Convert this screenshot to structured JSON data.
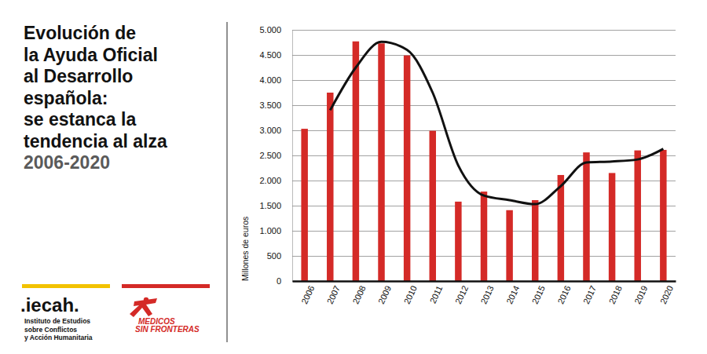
{
  "chart_data": {
    "type": "bar",
    "title": "Evolución de\nla Ayuda Oficial\nal Desarrollo\nespañola:\nse estanca la\ntendencia al alza",
    "subtitle": "2006-2020",
    "y_label": "Millones de euros",
    "categories": [
      "2006",
      "2007",
      "2008",
      "2009",
      "2010",
      "2011",
      "2012",
      "2013",
      "2014",
      "2015",
      "2016",
      "2017",
      "2018",
      "2019",
      "2020"
    ],
    "series": [
      {
        "type": "bar",
        "color": "#d42a27",
        "values": [
          3030,
          3750,
          4770,
          4730,
          4490,
          2990,
          1580,
          1780,
          1410,
          1610,
          2110,
          2560,
          2150,
          2600,
          2610
        ]
      },
      {
        "type": "line",
        "color": "#111111",
        "values": [
          null,
          3400,
          4250,
          4760,
          4600,
          3750,
          2300,
          1700,
          1610,
          1530,
          1890,
          2360,
          2380,
          2420,
          2630
        ]
      }
    ],
    "ylim": [
      0,
      5000
    ],
    "yticks": [
      0,
      500,
      {
        "value": 1000,
        "label": "1.000"
      },
      {
        "value": 1500,
        "label": "1.500"
      },
      {
        "value": 2000,
        "label": "2.000"
      },
      {
        "value": 2500,
        "label": "2.500"
      },
      {
        "value": 3000,
        "label": "3.000"
      },
      {
        "value": 3500,
        "label": "3.500"
      },
      {
        "value": 4000,
        "label": "4.000"
      },
      {
        "value": 4500,
        "label": "4.500"
      },
      {
        "value": 5000,
        "label": "5.000"
      }
    ],
    "grid": true
  },
  "logos": {
    "iecah": {
      "name": ".iecah.",
      "description": [
        "Instituto de Estudios",
        "sobre Conflictos",
        "y Acción Humanitaria"
      ]
    },
    "msf": [
      "MEDICOS",
      "SIN FRONTERAS"
    ]
  }
}
